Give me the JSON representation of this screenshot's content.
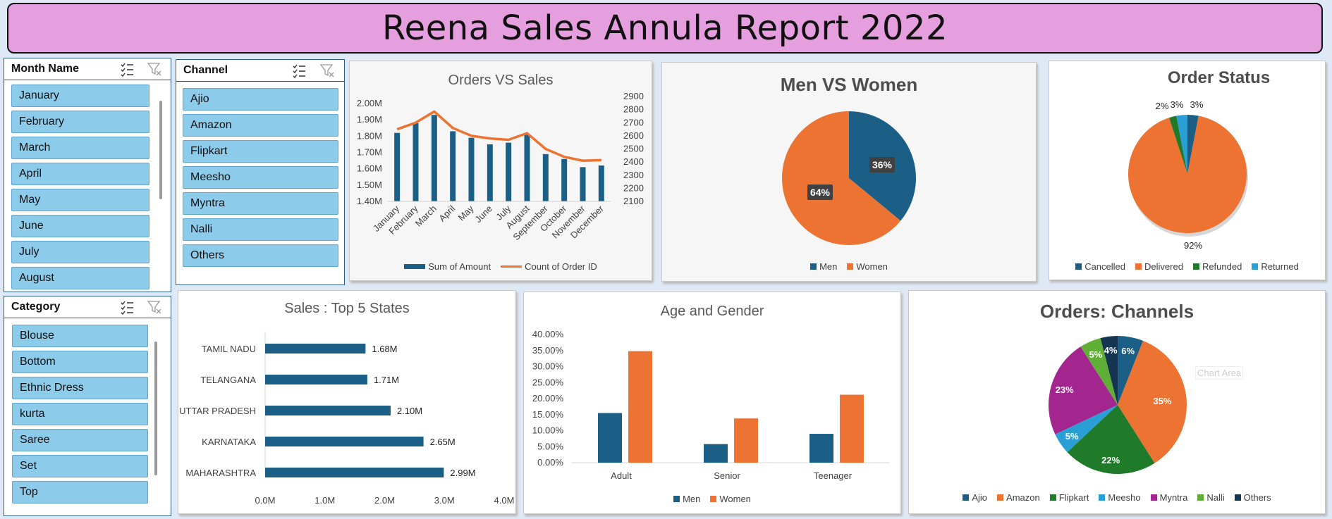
{
  "report_title": "Reena Sales Annula Report 2022",
  "slicers": {
    "month": {
      "title": "Month Name",
      "items": [
        "January",
        "February",
        "March",
        "April",
        "May",
        "June",
        "July",
        "August"
      ]
    },
    "channel": {
      "title": "Channel",
      "items": [
        "Ajio",
        "Amazon",
        "Flipkart",
        "Meesho",
        "Myntra",
        "Nalli",
        "Others"
      ]
    },
    "category": {
      "title": "Category",
      "items": [
        "Blouse",
        "Bottom",
        "Ethnic Dress",
        "kurta",
        "Saree",
        "Set",
        "Top"
      ]
    }
  },
  "colors": {
    "blue": "#1b5f86",
    "orange": "#ed7332",
    "green": "#1f7a2a",
    "light_blue": "#2a9fd6",
    "purple": "#a3268f",
    "lime": "#5fae37",
    "navy": "#153450",
    "slicer_item": "#8dcbeb",
    "title_bg": "#e59fde"
  },
  "charts": [
    {
      "id": "orders_vs_sales",
      "title": "Orders VS Sales",
      "type": "bar-line-combo",
      "categories": [
        "January",
        "February",
        "March",
        "April",
        "May",
        "June",
        "July",
        "August",
        "September",
        "October",
        "November",
        "December"
      ],
      "series": [
        {
          "name": "Sum of Amount",
          "type": "bar",
          "axis": "left",
          "values": [
            1.82,
            1.88,
            1.93,
            1.83,
            1.79,
            1.75,
            1.76,
            1.81,
            1.69,
            1.66,
            1.61,
            1.62
          ]
        },
        {
          "name": "Count of Order ID",
          "type": "line",
          "axis": "right",
          "values": [
            2650,
            2700,
            2785,
            2660,
            2600,
            2580,
            2570,
            2620,
            2500,
            2440,
            2410,
            2415
          ]
        }
      ],
      "y_left_ticks": [
        "1.40M",
        "1.50M",
        "1.60M",
        "1.70M",
        "1.80M",
        "1.90M",
        "2.00M"
      ],
      "ylim_left": [
        1.4,
        2.0
      ],
      "y_right_ticks": [
        "2100",
        "2200",
        "2300",
        "2400",
        "2500",
        "2600",
        "2700",
        "2800",
        "2900"
      ],
      "ylim_right": [
        2100,
        2900
      ]
    },
    {
      "id": "men_vs_women",
      "title": "Men VS Women",
      "type": "pie",
      "categories": [
        "Men",
        "Women"
      ],
      "values": [
        36,
        64
      ],
      "labels": [
        "36%",
        "64%"
      ]
    },
    {
      "id": "order_status",
      "title": "Order Status",
      "type": "pie",
      "categories": [
        "Cancelled",
        "Delivered",
        "Refunded",
        "Returned"
      ],
      "values": [
        3,
        92,
        2,
        3
      ],
      "labels": [
        "3%",
        "92%",
        "2%",
        "3%"
      ]
    },
    {
      "id": "top_states",
      "title": "Sales : Top 5 States",
      "type": "bar",
      "orientation": "horizontal",
      "categories": [
        "TAMIL NADU",
        "TELANGANA",
        "UTTAR PRADESH",
        "KARNATAKA",
        "MAHARASHTRA"
      ],
      "values": [
        1.68,
        1.71,
        2.1,
        2.65,
        2.99
      ],
      "labels": [
        "1.68M",
        "1.71M",
        "2.10M",
        "2.65M",
        "2.99M"
      ],
      "x_ticks": [
        "0.0M",
        "1.0M",
        "2.0M",
        "3.0M",
        "4.0M"
      ],
      "xlim": [
        0,
        4
      ]
    },
    {
      "id": "age_gender",
      "title": "Age and Gender",
      "type": "bar",
      "categories": [
        "Adult",
        "Senior",
        "Teenager"
      ],
      "series": [
        {
          "name": "Men",
          "values": [
            15.5,
            5.8,
            9.0
          ]
        },
        {
          "name": "Women",
          "values": [
            34.8,
            13.8,
            21.2
          ]
        }
      ],
      "y_ticks": [
        "0.00%",
        "5.00%",
        "10.00%",
        "15.00%",
        "20.00%",
        "25.00%",
        "30.00%",
        "35.00%",
        "40.00%"
      ],
      "ylim": [
        0,
        40
      ]
    },
    {
      "id": "orders_channels",
      "title": "Orders: Channels",
      "type": "pie",
      "categories": [
        "Ajio",
        "Amazon",
        "Flipkart",
        "Meesho",
        "Myntra",
        "Nalli",
        "Others"
      ],
      "values": [
        6,
        35,
        22,
        5,
        23,
        5,
        4
      ],
      "labels": [
        "6%",
        "35%",
        "22%",
        "5%",
        "23%",
        "5%",
        "4%"
      ],
      "tooltip": "Chart Area"
    }
  ]
}
